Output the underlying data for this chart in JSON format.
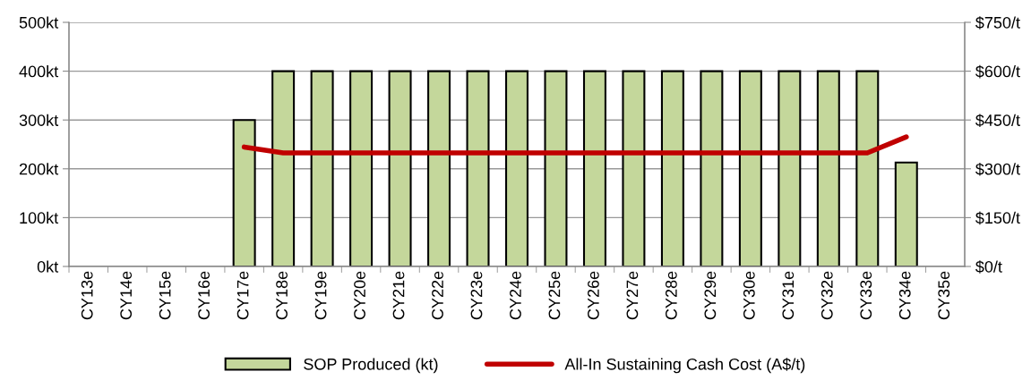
{
  "chart_data": {
    "type": "bar",
    "categories": [
      "CY13e",
      "CY14e",
      "CY15e",
      "CY16e",
      "CY17e",
      "CY18e",
      "CY19e",
      "CY20e",
      "CY21e",
      "CY22e",
      "CY23e",
      "CY24e",
      "CY25e",
      "CY26e",
      "CY27e",
      "CY28e",
      "CY29e",
      "CY30e",
      "CY31e",
      "CY32e",
      "CY33e",
      "CY34e",
      "CY35e"
    ],
    "series": [
      {
        "name": "SOP Produced (kt)",
        "color": "#c4d79b",
        "values": [
          null,
          null,
          null,
          null,
          300,
          400,
          400,
          400,
          400,
          400,
          400,
          400,
          400,
          400,
          400,
          400,
          400,
          400,
          400,
          400,
          400,
          213,
          null
        ]
      },
      {
        "name": "All-In Sustaining Cash Cost (A$/t)",
        "type": "line",
        "axis": "y2",
        "color": "#c00000",
        "values": [
          null,
          null,
          null,
          null,
          367,
          349,
          349,
          349,
          349,
          349,
          349,
          349,
          349,
          349,
          349,
          349,
          349,
          349,
          349,
          349,
          349,
          398,
          null
        ]
      }
    ],
    "ylim": [
      0,
      500
    ],
    "yticks": [
      {
        "value": 0,
        "label": "0kt"
      },
      {
        "value": 100,
        "label": "100kt"
      },
      {
        "value": 200,
        "label": "200kt"
      },
      {
        "value": 300,
        "label": "300kt"
      },
      {
        "value": 400,
        "label": "400kt"
      },
      {
        "value": 500,
        "label": "500kt"
      }
    ],
    "y2lim": [
      0,
      750
    ],
    "y2ticks": [
      {
        "value": 0,
        "label": "$0/t"
      },
      {
        "value": 150,
        "label": "$150/t"
      },
      {
        "value": 300,
        "label": "$300/t"
      },
      {
        "value": 450,
        "label": "$450/t"
      },
      {
        "value": 600,
        "label": "$600/t"
      },
      {
        "value": 750,
        "label": "$750/t"
      }
    ],
    "grid": "y",
    "legend": "bottom",
    "marker": "none",
    "line_style": "solid"
  }
}
